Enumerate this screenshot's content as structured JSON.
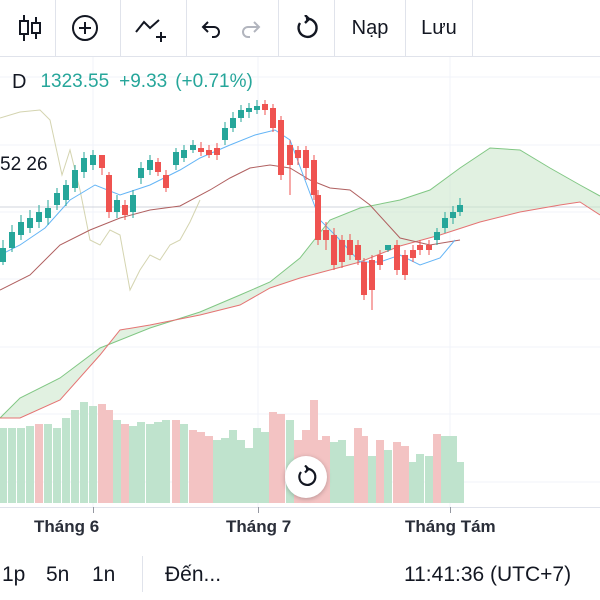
{
  "toolbar": {
    "load_label": "Nạp",
    "save_label": "Lưu",
    "icons": [
      "candlestick-chart-icon",
      "add-circle-icon",
      "indicators-icon",
      "undo-icon",
      "redo-icon",
      "reset-icon"
    ]
  },
  "legend": {
    "interval": "D",
    "price": "1323.55",
    "change": "+9.33",
    "change_pct": "(+0.71%)"
  },
  "side_value": "52 26",
  "xaxis": {
    "labels": [
      "Tháng 6",
      "Tháng 7",
      "Tháng Tám"
    ]
  },
  "footer": {
    "range_1": "1p",
    "range_2": "5n",
    "range_3": "1n",
    "goto_label": "Đến...",
    "clock": "11:41:36 (UTC+7)"
  },
  "colors": {
    "up": "#26a69a",
    "down": "#ef5350",
    "cloud_fill": "#c8e6c9",
    "cloud_line_up": "#81c784",
    "cloud_line_down": "#e57373",
    "tenkan": "#64b5f6",
    "kijun": "#b06060",
    "chikou": "#d4d4b0",
    "volume_up": "#bfe3cd",
    "volume_down": "#f3c3c3"
  }
}
